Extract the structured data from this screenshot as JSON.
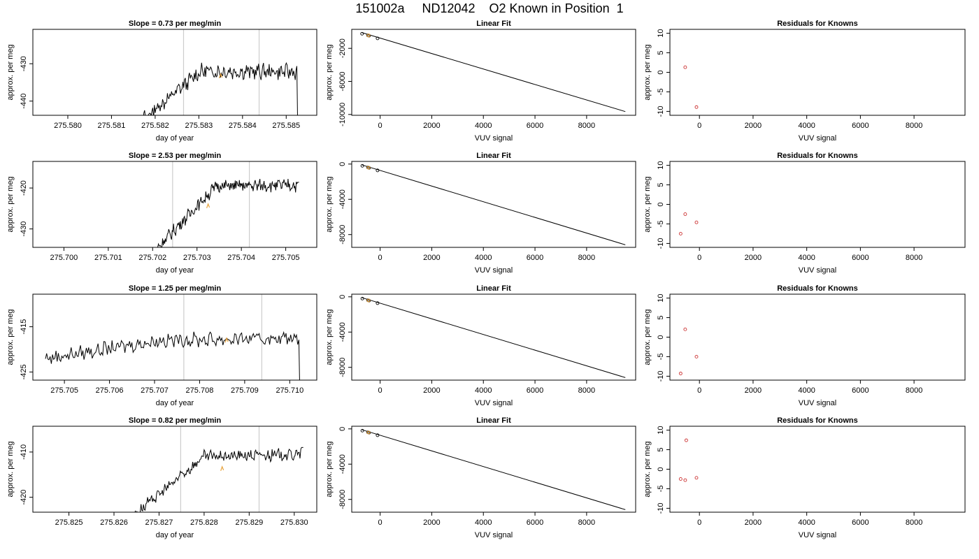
{
  "title": "151002a     ND12042    O2 Known in Position  1",
  "chart_data": [
    {
      "row": 1,
      "type": "line",
      "title": "Slope =  0.73  per meg/min",
      "xlabel": "day of year",
      "ylabel": "approx. per meg",
      "xlim": [
        275.5792,
        275.5857
      ],
      "ylim": [
        -443.8,
        -420.8
      ],
      "xticks": [
        275.58,
        275.581,
        275.582,
        275.583,
        275.584,
        275.585
      ],
      "xtick_labels": [
        "275.580",
        "275.581",
        "275.582",
        "275.583",
        "275.584",
        "275.585"
      ],
      "yticks": [
        -440,
        -430
      ],
      "ytick_labels": [
        "-440",
        "-430"
      ],
      "vlines": [
        275.58265,
        275.58438
      ],
      "highlight": {
        "x": 275.5835,
        "y": -433.3
      },
      "series": [
        {
          "x_start": 275.5812,
          "x_end": 275.5853,
          "start_y": -450.0,
          "end_y": -432.2,
          "plateau_y": -432.0,
          "noise": 1.7,
          "final_y": -447.0
        }
      ]
    },
    {
      "row": 2,
      "type": "line",
      "title": "Slope =  2.53  per meg/min",
      "xlabel": "day of year",
      "ylabel": "approx. per meg",
      "xlim": [
        275.6993,
        275.7057
      ],
      "ylim": [
        -434.5,
        -413.5
      ],
      "xticks": [
        275.7,
        275.701,
        275.702,
        275.703,
        275.704,
        275.705
      ],
      "xtick_labels": [
        "275.700",
        "275.701",
        "275.702",
        "275.703",
        "275.704",
        "275.705"
      ],
      "yticks": [
        -430,
        -420
      ],
      "ytick_labels": [
        "-430",
        "-420"
      ],
      "vlines": [
        275.70245,
        275.70418
      ],
      "highlight": {
        "x": 275.70325,
        "y": -424.4
      },
      "series": [
        {
          "x_start": 275.7019,
          "x_end": 275.7053,
          "start_y": -437.0,
          "end_y": -419.3,
          "plateau_y": -419.5,
          "noise": 1.3,
          "final_y": -418.6
        }
      ]
    },
    {
      "row": 3,
      "type": "line",
      "title": "Slope =  1.25  per meg/min",
      "xlabel": "day of year",
      "ylabel": "approx. per meg",
      "xlim": [
        275.7043,
        275.7106
      ],
      "ylim": [
        -426.8,
        -407.8
      ],
      "xticks": [
        275.705,
        275.706,
        275.707,
        275.708,
        275.709,
        275.71
      ],
      "xtick_labels": [
        "275.705",
        "275.706",
        "275.707",
        "275.708",
        "275.709",
        "275.710"
      ],
      "yticks": [
        -425,
        -415
      ],
      "ytick_labels": [
        "-425",
        "-415"
      ],
      "vlines": [
        275.70765,
        275.70938
      ],
      "highlight": {
        "x": 275.7086,
        "y": -418.0
      },
      "series": [
        {
          "x_start": 275.70458,
          "x_end": 275.71028,
          "start_y": -422.0,
          "end_y": -417.5,
          "plateau_y": -418.0,
          "noise": 1.3,
          "final_y": -432.0
        }
      ]
    },
    {
      "row": 4,
      "type": "line",
      "title": "Slope =  0.82  per meg/min",
      "xlabel": "day of year",
      "ylabel": "approx. per meg",
      "xlim": [
        275.8242,
        275.8305
      ],
      "ylim": [
        -423.3,
        -404.3
      ],
      "xticks": [
        275.825,
        275.826,
        275.827,
        275.828,
        275.829,
        275.83
      ],
      "xtick_labels": [
        "275.825",
        "275.826",
        "275.827",
        "275.828",
        "275.829",
        "275.830"
      ],
      "yticks": [
        -420,
        -410
      ],
      "ytick_labels": [
        "-420",
        "-410"
      ],
      "vlines": [
        275.82748,
        275.82922
      ],
      "highlight": {
        "x": 275.8284,
        "y": -413.7
      },
      "series": [
        {
          "x_start": 275.8262,
          "x_end": 275.8302,
          "start_y": -426.0,
          "end_y": -410.5,
          "plateau_y": -411.0,
          "noise": 1.1,
          "final_y": -409.0
        }
      ]
    },
    {
      "row": 1,
      "type": "scatter",
      "title": "Linear Fit",
      "xlabel": "VUV signal",
      "ylabel": "approx. per meg",
      "xlim": [
        -1100,
        9900
      ],
      "ylim": [
        -10100,
        300
      ],
      "xticks": [
        0,
        2000,
        4000,
        6000,
        8000
      ],
      "xtick_labels": [
        "0",
        "2000",
        "4000",
        "6000",
        "8000"
      ],
      "yticks": [
        -10000,
        -6000,
        -2000
      ],
      "ytick_labels": [
        "-10000",
        "-6000",
        "-2000"
      ],
      "fit_line": {
        "x": [
          -700,
          9500
        ],
        "y": [
          -100,
          -9650
        ]
      },
      "points": [
        {
          "x": -700,
          "y": -230
        },
        {
          "x": -470,
          "y": -430
        },
        {
          "x": -430,
          "y": -470
        },
        {
          "x": -100,
          "y": -790
        }
      ],
      "highlight_points": [
        {
          "x": -450,
          "y": -440
        }
      ]
    },
    {
      "row": 2,
      "type": "scatter",
      "title": "Linear Fit",
      "xlabel": "VUV signal",
      "ylabel": "approx. per meg",
      "xlim": [
        -1100,
        9900
      ],
      "ylim": [
        -9450,
        300
      ],
      "xticks": [
        0,
        2000,
        4000,
        6000,
        8000
      ],
      "xtick_labels": [
        "0",
        "2000",
        "4000",
        "6000",
        "8000"
      ],
      "yticks": [
        -8000,
        -4000,
        0
      ],
      "ytick_labels": [
        "-8000",
        "-4000",
        "0"
      ],
      "fit_line": {
        "x": [
          -700,
          9500
        ],
        "y": [
          -100,
          -9160
        ]
      },
      "points": [
        {
          "x": -690,
          "y": -200
        },
        {
          "x": -470,
          "y": -390
        },
        {
          "x": -430,
          "y": -430
        },
        {
          "x": -100,
          "y": -720
        }
      ],
      "highlight_points": [
        {
          "x": -450,
          "y": -410
        }
      ]
    },
    {
      "row": 3,
      "type": "scatter",
      "title": "Linear Fit",
      "xlabel": "VUV signal",
      "ylabel": "approx. per meg",
      "xlim": [
        -1100,
        9900
      ],
      "ylim": [
        -9450,
        300
      ],
      "xticks": [
        0,
        2000,
        4000,
        6000,
        8000
      ],
      "xtick_labels": [
        "0",
        "2000",
        "4000",
        "6000",
        "8000"
      ],
      "yticks": [
        -8000,
        -4000,
        0
      ],
      "ytick_labels": [
        "-8000",
        "-4000",
        "0"
      ],
      "fit_line": {
        "x": [
          -700,
          9500
        ],
        "y": [
          -100,
          -9160
        ]
      },
      "points": [
        {
          "x": -690,
          "y": -200
        },
        {
          "x": -470,
          "y": -390
        },
        {
          "x": -430,
          "y": -430
        },
        {
          "x": -100,
          "y": -720
        }
      ],
      "highlight_points": [
        {
          "x": -450,
          "y": -410
        }
      ]
    },
    {
      "row": 4,
      "type": "scatter",
      "title": "Linear Fit",
      "xlabel": "VUV signal",
      "ylabel": "approx. per meg",
      "xlim": [
        -1100,
        9900
      ],
      "ylim": [
        -9450,
        300
      ],
      "xticks": [
        0,
        2000,
        4000,
        6000,
        8000
      ],
      "xtick_labels": [
        "0",
        "2000",
        "4000",
        "6000",
        "8000"
      ],
      "yticks": [
        -8000,
        -4000,
        0
      ],
      "ytick_labels": [
        "-8000",
        "-4000",
        "0"
      ],
      "fit_line": {
        "x": [
          -700,
          9500
        ],
        "y": [
          -100,
          -9160
        ]
      },
      "points": [
        {
          "x": -690,
          "y": -200
        },
        {
          "x": -470,
          "y": -390
        },
        {
          "x": -430,
          "y": -430
        },
        {
          "x": -100,
          "y": -720
        }
      ],
      "highlight_points": [
        {
          "x": -450,
          "y": -410
        }
      ]
    },
    {
      "row": 1,
      "type": "scatter",
      "title": "Residuals for Knowns",
      "xlabel": "VUV signal",
      "ylabel": "approx. per meg",
      "xlim": [
        -1100,
        9900
      ],
      "ylim": [
        -11,
        11
      ],
      "xticks": [
        0,
        2000,
        4000,
        6000,
        8000
      ],
      "xtick_labels": [
        "0",
        "2000",
        "4000",
        "6000",
        "8000"
      ],
      "yticks": [
        -10,
        -5,
        0,
        5,
        10
      ],
      "ytick_labels": [
        "-10",
        "-5",
        "0",
        "5",
        "10"
      ],
      "points": [
        {
          "x": -530,
          "y": 1.3
        },
        {
          "x": -110,
          "y": -8.9
        }
      ]
    },
    {
      "row": 2,
      "type": "scatter",
      "title": "Residuals for Knowns",
      "xlabel": "VUV signal",
      "ylabel": "approx. per meg",
      "xlim": [
        -1100,
        9900
      ],
      "ylim": [
        -11,
        11
      ],
      "xticks": [
        0,
        2000,
        4000,
        6000,
        8000
      ],
      "xtick_labels": [
        "0",
        "2000",
        "4000",
        "6000",
        "8000"
      ],
      "yticks": [
        -10,
        -5,
        0,
        5,
        10
      ],
      "ytick_labels": [
        "-10",
        "-5",
        "0",
        "5",
        "10"
      ],
      "points": [
        {
          "x": -700,
          "y": -7.5
        },
        {
          "x": -530,
          "y": -2.5
        },
        {
          "x": -110,
          "y": -4.6
        }
      ]
    },
    {
      "row": 3,
      "type": "scatter",
      "title": "Residuals for Knowns",
      "xlabel": "VUV signal",
      "ylabel": "approx. per meg",
      "xlim": [
        -1100,
        9900
      ],
      "ylim": [
        -11,
        11
      ],
      "xticks": [
        0,
        2000,
        4000,
        6000,
        8000
      ],
      "xtick_labels": [
        "0",
        "2000",
        "4000",
        "6000",
        "8000"
      ],
      "yticks": [
        -10,
        -5,
        0,
        5,
        10
      ],
      "ytick_labels": [
        "-10",
        "-5",
        "0",
        "5",
        "10"
      ],
      "points": [
        {
          "x": -700,
          "y": -9.3
        },
        {
          "x": -530,
          "y": 2.0
        },
        {
          "x": -110,
          "y": -5.0
        }
      ]
    },
    {
      "row": 4,
      "type": "scatter",
      "title": "Residuals for Knowns",
      "xlabel": "VUV signal",
      "ylabel": "approx. per meg",
      "xlim": [
        -1100,
        9900
      ],
      "ylim": [
        -11,
        11
      ],
      "xticks": [
        0,
        2000,
        4000,
        6000,
        8000
      ],
      "xtick_labels": [
        "0",
        "2000",
        "4000",
        "6000",
        "8000"
      ],
      "yticks": [
        -10,
        -5,
        0,
        5,
        10
      ],
      "ytick_labels": [
        "-10",
        "-5",
        "0",
        "5",
        "10"
      ],
      "points": [
        {
          "x": -700,
          "y": -2.5
        },
        {
          "x": -530,
          "y": -2.8
        },
        {
          "x": -490,
          "y": 7.4
        },
        {
          "x": -110,
          "y": -2.2
        }
      ]
    }
  ],
  "colors": {
    "line": "#000000",
    "highlight": "#e8a33d",
    "point": "#cc3333",
    "vline": "#cccccc",
    "axis": "#000000"
  }
}
